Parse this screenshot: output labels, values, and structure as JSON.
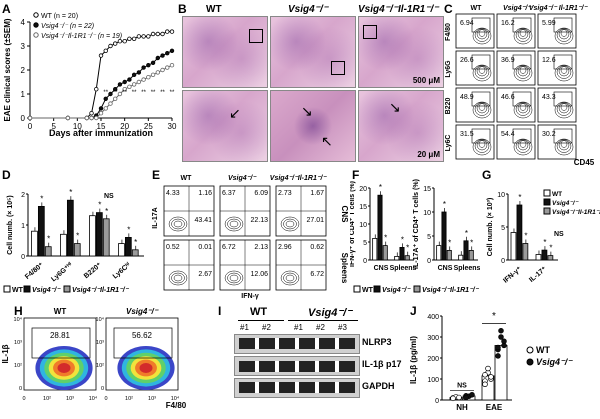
{
  "panels": {
    "A": "A",
    "B": "B",
    "C": "C",
    "D": "D",
    "E": "E",
    "F": "F",
    "G": "G",
    "H": "H",
    "I": "I",
    "J": "J"
  },
  "legend_A": [
    "WT (n = 20)",
    "Vsig4⁻/⁻ (n = 22)",
    "Vsig4⁻/⁻Il-1R1⁻/⁻ (n = 19)"
  ],
  "A": {
    "ylabel": "EAE clinical scores (±SEM)",
    "xlabel": "Days after immunization",
    "xticks": [
      "0",
      "5",
      "10",
      "15",
      "20",
      "25",
      "30"
    ],
    "yticks": [
      "0",
      "1",
      "2",
      "3",
      "4"
    ],
    "series": [
      {
        "days": [
          0,
          4,
          8,
          10,
          12,
          13,
          14,
          15,
          16,
          17,
          18,
          19,
          20,
          21,
          22,
          23,
          24,
          25,
          26,
          27,
          28,
          29,
          30
        ],
        "values": [
          0,
          0,
          0,
          0,
          0,
          0.2,
          1.2,
          2.6,
          2.8,
          3.0,
          3.1,
          3.2,
          3.2,
          3.3,
          3.3,
          3.4,
          3.4,
          3.4,
          3.5,
          3.5,
          3.5,
          3.6,
          3.6
        ]
      },
      {
        "days": [
          0,
          4,
          8,
          10,
          12,
          13,
          14,
          15,
          16,
          17,
          18,
          19,
          20,
          21,
          22,
          23,
          24,
          25,
          26,
          27,
          28,
          29,
          30
        ],
        "values": [
          0,
          0,
          0,
          0,
          0,
          0,
          0.1,
          0.4,
          0.8,
          1.0,
          1.2,
          1.4,
          1.5,
          1.6,
          1.8,
          1.9,
          2.1,
          2.2,
          2.3,
          2.5,
          2.6,
          2.7,
          2.8
        ]
      },
      {
        "days": [
          0,
          4,
          8,
          10,
          12,
          13,
          14,
          15,
          16,
          17,
          18,
          19,
          20,
          21,
          22,
          23,
          24,
          25,
          26,
          27,
          28,
          29,
          30
        ],
        "values": [
          0,
          0,
          0,
          0,
          0,
          0,
          0,
          0.2,
          0.4,
          0.6,
          0.8,
          1.0,
          1.2,
          1.3,
          1.4,
          1.5,
          1.6,
          1.7,
          1.8,
          1.9,
          2.0,
          2.1,
          2.2
        ]
      }
    ]
  },
  "B": {
    "titles": [
      "WT",
      "Vsig4⁻/⁻",
      "Vsig4⁻/⁻Il-1R1⁻/⁻"
    ],
    "scale1": "500 μM",
    "scale2": "20 μM"
  },
  "C": {
    "cols": [
      "WT",
      "Vsig4⁻/⁻",
      "Vsig4⁻/⁻Il-1R1⁻/⁻"
    ],
    "rows": [
      "F4/80",
      "Ly6G",
      "B220",
      "Ly6C"
    ],
    "values": [
      [
        "6.94",
        "16.2",
        "5.99"
      ],
      [
        "26.6",
        "36.9",
        "12.6"
      ],
      [
        "48.9",
        "46.6",
        "43.3"
      ],
      [
        "31.5",
        "54.4",
        "30.2"
      ]
    ],
    "xlabel": "CD45"
  },
  "chart_data": [
    {
      "type": "bar",
      "panel": "D",
      "ylabel": "Cell numb. (× 10⁵)",
      "categories": [
        "F4/80⁺",
        "Ly6G⁺ᴴⁱ",
        "B220⁺",
        "Ly6Cʰⁱ"
      ],
      "series": [
        {
          "name": "WT",
          "values": [
            0.8,
            0.7,
            1.3,
            0.4
          ]
        },
        {
          "name": "Vsig4⁻/⁻",
          "values": [
            1.6,
            1.8,
            1.4,
            0.6
          ]
        },
        {
          "name": "Vsig4⁻/⁻Il-1R1⁻/⁻",
          "values": [
            0.3,
            0.4,
            1.2,
            0.2
          ]
        }
      ],
      "yticks": [
        "0",
        "1",
        "2"
      ],
      "ylim": [
        0,
        2
      ]
    },
    {
      "type": "bar",
      "panel": "F-left",
      "ylabel": "IFN-γ⁺ of CD4⁺ T cells (%)",
      "categories": [
        "CNS",
        "Spleens"
      ],
      "series": [
        {
          "name": "WT",
          "values": [
            6,
            1.0
          ]
        },
        {
          "name": "Vsig4⁻/⁻",
          "values": [
            18,
            3.5
          ]
        },
        {
          "name": "Vsig4⁻/⁻Il-1R1⁻/⁻",
          "values": [
            4,
            1.2
          ]
        }
      ],
      "yticks": [
        "0",
        "5",
        "10",
        "15",
        "20"
      ],
      "ylim": [
        0,
        20
      ]
    },
    {
      "type": "bar",
      "panel": "F-right",
      "ylabel": "IL-17A⁺ of CD4⁺ T cells (%)",
      "categories": [
        "CNS",
        "Spleens"
      ],
      "series": [
        {
          "name": "WT",
          "values": [
            3,
            1.0
          ]
        },
        {
          "name": "Vsig4⁻/⁻",
          "values": [
            10,
            4.0
          ]
        },
        {
          "name": "Vsig4⁻/⁻Il-1R1⁻/⁻",
          "values": [
            2,
            2.0
          ]
        }
      ],
      "yticks": [
        "0",
        "5",
        "10",
        "15"
      ],
      "ylim": [
        0,
        15
      ]
    },
    {
      "type": "bar",
      "panel": "G",
      "ylabel": "Cell numb. (× 10³)",
      "categories": [
        "IFN-γ⁺",
        "IL-17⁺"
      ],
      "series": [
        {
          "name": "WT",
          "values": [
            5,
            1.0
          ]
        },
        {
          "name": "Vsig4⁻/⁻",
          "values": [
            10,
            1.8
          ]
        },
        {
          "name": "Vsig4⁻/⁻Il-1R1⁻/⁻",
          "values": [
            3,
            0.8
          ]
        }
      ],
      "yticks": [
        "0",
        "5",
        "10"
      ],
      "ylim": [
        0,
        12
      ]
    },
    {
      "type": "scatter",
      "panel": "J",
      "ylabel": "IL-1β (pg/ml)",
      "categories": [
        "NH",
        "EAE"
      ],
      "series": [
        {
          "name": "WT",
          "values": [
            [
              10,
              15,
              12,
              8
            ],
            [
              90,
              130,
              100,
              75,
              150,
              110,
              120
            ]
          ]
        },
        {
          "name": "Vsig4⁻/⁻",
          "values": [
            [
              20,
              18,
              25,
              12
            ],
            [
              240,
              300,
              260,
              210,
              330,
              280,
              250
            ]
          ]
        }
      ],
      "bars": {
        "WT": [
          12,
          115
        ],
        "Vsig4": [
          19,
          260
        ]
      },
      "yticks": [
        "0",
        "100",
        "200",
        "300",
        "400"
      ],
      "ylim": [
        0,
        400
      ]
    }
  ],
  "legend_DFG": [
    "WT",
    "Vsig4⁻/⁻",
    "Vsig4⁻/⁻Il-1R1⁻/⁻"
  ],
  "E": {
    "cols": [
      "WT",
      "Vsig4⁻/⁻",
      "Vsig4⁻/⁻Il-1R1⁻/⁻"
    ],
    "cns": [
      [
        "4.33",
        "1.16",
        "43.41"
      ],
      [
        "6.37",
        "6.09",
        "22.13"
      ],
      [
        "2.73",
        "1.67",
        "27.01"
      ]
    ],
    "sp": [
      [
        "0.52",
        "0.01",
        "2.67"
      ],
      [
        "6.72",
        "2.13",
        "12.06"
      ],
      [
        "2.96",
        "0.62",
        "6.72"
      ]
    ],
    "row_cns": "CNS",
    "row_sp": "Spleens",
    "ylabel": "IL-17A",
    "xlabel": "IFN-γ"
  },
  "NS": "NS",
  "H": {
    "titles": [
      "WT",
      "Vsig4⁻/⁻"
    ],
    "values": [
      "28.81",
      "56.62"
    ],
    "ylabel": "IL-1β",
    "xlabel": "F4/80",
    "ticks": [
      "0",
      "10²",
      "10³",
      "10⁴"
    ]
  },
  "I": {
    "groups": [
      "WT",
      "Vsig4⁻/⁻"
    ],
    "lanes": [
      "#1",
      "#2",
      "#1",
      "#2",
      "#3"
    ],
    "bands": [
      "NLRP3",
      "IL-1β p17",
      "GAPDH"
    ]
  },
  "J": {
    "legend": [
      "WT",
      "Vsig4⁻/⁻"
    ]
  },
  "star": "*"
}
